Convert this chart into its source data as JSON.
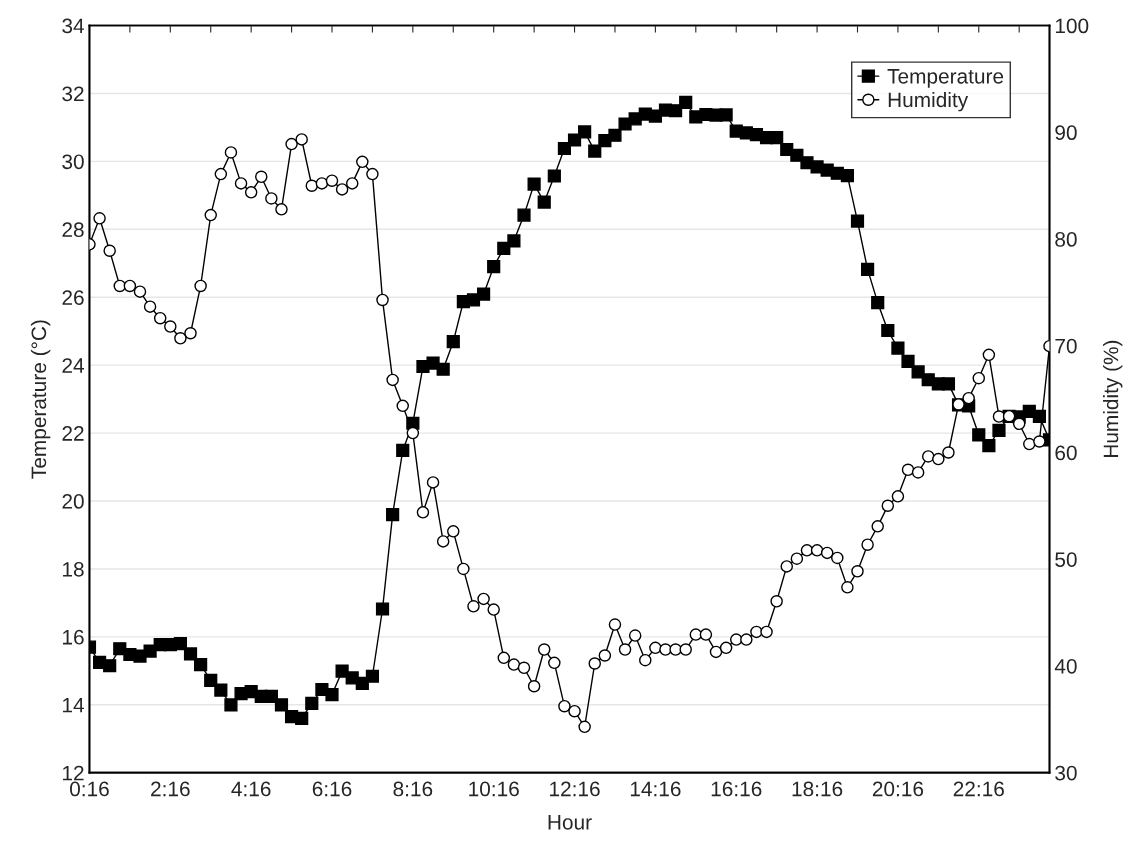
{
  "chart_data": {
    "type": "line",
    "xlabel": "Hour",
    "ylabel": "Temperature (°C)",
    "y2label": "Humidity (%)",
    "x": [
      0.2667,
      0.5167,
      0.7667,
      1.0167,
      1.2667,
      1.5167,
      1.7667,
      2.0167,
      2.2667,
      2.5167,
      2.7667,
      3.0167,
      3.2667,
      3.5167,
      3.7667,
      4.0167,
      4.2667,
      4.5167,
      4.7667,
      5.0167,
      5.2667,
      5.5167,
      5.7667,
      6.0167,
      6.2667,
      6.5167,
      6.7667,
      7.0167,
      7.2667,
      7.5167,
      7.7667,
      8.0167,
      8.2667,
      8.5167,
      8.7667,
      9.0167,
      9.2667,
      9.5167,
      9.7667,
      10.0167,
      10.2667,
      10.5167,
      10.7667,
      11.0167,
      11.2667,
      11.5167,
      11.7667,
      12.0167,
      12.2667,
      12.5167,
      12.7667,
      13.0167,
      13.2667,
      13.5167,
      13.7667,
      14.0167,
      14.2667,
      14.5167,
      14.7667,
      15.0167,
      15.2667,
      15.5167,
      15.7667,
      16.0167,
      16.2667,
      16.5167,
      16.7667,
      17.0167,
      17.2667,
      17.5167,
      17.7667,
      18.0167,
      18.2667,
      18.5167,
      18.7667,
      19.0167,
      19.2667,
      19.5167,
      19.7667,
      20.0167,
      20.2667,
      20.5167,
      20.7667,
      21.0167,
      21.2667,
      21.5167,
      21.7667,
      22.0167,
      22.2667,
      22.5167,
      22.7667,
      23.0167,
      23.2667,
      23.5167,
      23.7667,
      24.0167
    ],
    "series": [
      {
        "name": "Temperature",
        "color": "#000000",
        "marker": "square",
        "values": [
          15.7,
          15.25,
          15.15,
          15.65,
          15.48,
          15.43,
          15.58,
          15.77,
          15.77,
          15.8,
          15.5,
          15.18,
          14.72,
          14.43,
          14.0,
          14.33,
          14.39,
          14.25,
          14.25,
          14.0,
          13.65,
          13.6,
          14.04,
          14.45,
          14.3,
          14.99,
          14.79,
          14.63,
          14.84,
          16.82,
          19.6,
          21.49,
          22.29,
          23.96,
          24.06,
          23.88,
          24.69,
          25.87,
          25.92,
          26.09,
          26.9,
          27.44,
          27.66,
          28.42,
          29.33,
          28.8,
          29.57,
          30.38,
          30.63,
          30.87,
          30.3,
          30.61,
          30.77,
          31.1,
          31.25,
          31.39,
          31.33,
          31.51,
          31.49,
          31.74,
          31.31,
          31.38,
          31.36,
          31.37,
          30.89,
          30.84,
          30.79,
          30.7,
          30.7,
          30.35,
          30.18,
          29.96,
          29.84,
          29.74,
          29.65,
          29.58,
          28.24,
          26.82,
          25.84,
          25.02,
          24.5,
          24.11,
          23.8,
          23.57,
          23.45,
          23.45,
          22.83,
          22.8,
          21.95,
          21.63,
          22.08,
          22.49,
          22.48,
          22.64,
          22.49,
          21.8
        ]
      },
      {
        "name": "Humidity",
        "color": "#000000",
        "marker": "circle",
        "axis": "y2",
        "values": [
          79.5,
          81.94,
          78.9,
          75.6,
          75.6,
          75.07,
          73.66,
          72.58,
          71.8,
          70.7,
          71.17,
          75.6,
          82.24,
          86.08,
          88.11,
          85.21,
          84.37,
          85.83,
          83.8,
          82.78,
          88.89,
          89.33,
          84.99,
          85.21,
          85.46,
          84.65,
          85.21,
          87.23,
          86.08,
          74.29,
          66.8,
          64.37,
          61.82,
          54.39,
          57.2,
          51.67,
          52.61,
          49.09,
          45.59,
          46.28,
          45.28,
          40.76,
          40.13,
          39.83,
          38.1,
          41.54,
          40.29,
          36.23,
          35.76,
          34.3,
          40.23,
          40.98,
          43.88,
          41.54,
          42.85,
          40.54,
          41.7,
          41.54,
          41.54,
          41.54,
          42.94,
          42.94,
          41.32,
          41.7,
          42.47,
          42.47,
          43.19,
          43.19,
          46.06,
          49.33,
          50.05,
          50.83,
          50.83,
          50.59,
          50.12,
          47.37,
          48.87,
          51.36,
          53.08,
          55.01,
          55.89,
          58.38,
          58.13,
          59.63,
          59.38,
          60.0,
          64.5,
          65.09,
          66.96,
          69.15,
          63.37,
          63.4,
          62.69,
          60.79,
          61.03,
          69.96
        ]
      }
    ],
    "xlim": [
      0.2667,
      24.0167
    ],
    "xticks": [
      {
        "value": 0.2667,
        "label": "0:16"
      },
      {
        "value": 1.2667,
        "label": null
      },
      {
        "value": 2.2667,
        "label": "2:16"
      },
      {
        "value": 3.2667,
        "label": null
      },
      {
        "value": 4.2667,
        "label": "4:16"
      },
      {
        "value": 5.2667,
        "label": null
      },
      {
        "value": 6.2667,
        "label": "6:16"
      },
      {
        "value": 7.2667,
        "label": null
      },
      {
        "value": 8.2667,
        "label": "8:16"
      },
      {
        "value": 9.2667,
        "label": null
      },
      {
        "value": 10.2667,
        "label": "10:16"
      },
      {
        "value": 11.2667,
        "label": null
      },
      {
        "value": 12.2667,
        "label": "12:16"
      },
      {
        "value": 13.2667,
        "label": null
      },
      {
        "value": 14.2667,
        "label": "14:16"
      },
      {
        "value": 15.2667,
        "label": null
      },
      {
        "value": 16.2667,
        "label": "16:16"
      },
      {
        "value": 17.2667,
        "label": null
      },
      {
        "value": 18.2667,
        "label": "18:16"
      },
      {
        "value": 19.2667,
        "label": null
      },
      {
        "value": 20.2667,
        "label": "20:16"
      },
      {
        "value": 21.2667,
        "label": null
      },
      {
        "value": 22.2667,
        "label": "22:16"
      },
      {
        "value": 23.2667,
        "label": null
      }
    ],
    "ylim": [
      12,
      34
    ],
    "yticks": [
      12,
      14,
      16,
      18,
      20,
      22,
      24,
      26,
      28,
      30,
      32,
      34
    ],
    "y2lim": [
      30,
      100
    ],
    "y2ticks": [
      30,
      40,
      50,
      60,
      70,
      80,
      90,
      100
    ],
    "grid": "y",
    "legend": "top right",
    "line_style": "solid"
  }
}
